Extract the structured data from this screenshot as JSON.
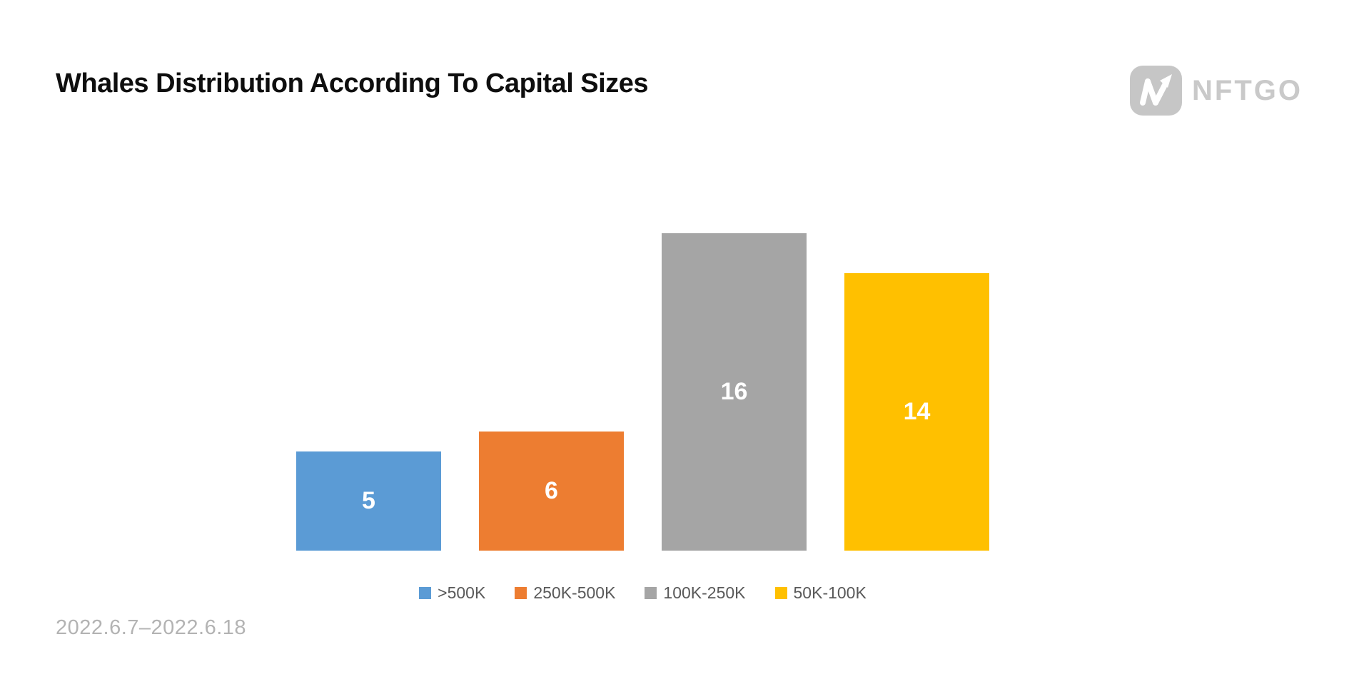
{
  "header": {
    "title": "Whales Distribution According To Capital Sizes",
    "logo": {
      "brand": "NFTGO",
      "icon": "nftgo-n-arrow-icon",
      "badge_color": "#c6c6c6",
      "text_color": "#c9c9c9"
    }
  },
  "chart_data": {
    "type": "bar",
    "title": "Whales Distribution According To Capital Sizes",
    "categories": [
      ">500K",
      "250K-500K",
      "100K-250K",
      "50K-100K"
    ],
    "values": [
      5,
      6,
      16,
      14
    ],
    "colors": [
      "#5b9bd5",
      "#ed7d31",
      "#a5a5a5",
      "#ffc000"
    ],
    "slugs": [
      "gt-500k",
      "250k-500k",
      "100k-250k",
      "50k-100k"
    ],
    "xlabel": "",
    "ylabel": "",
    "ylim": [
      0,
      16
    ],
    "grid": false,
    "axes_visible": false,
    "legend_position": "bottom-center",
    "value_label_style": "white bold, centered inside bar",
    "legend_text_color": "#595959"
  },
  "footer": {
    "date_range": "2022.6.7–2022.6.18"
  }
}
